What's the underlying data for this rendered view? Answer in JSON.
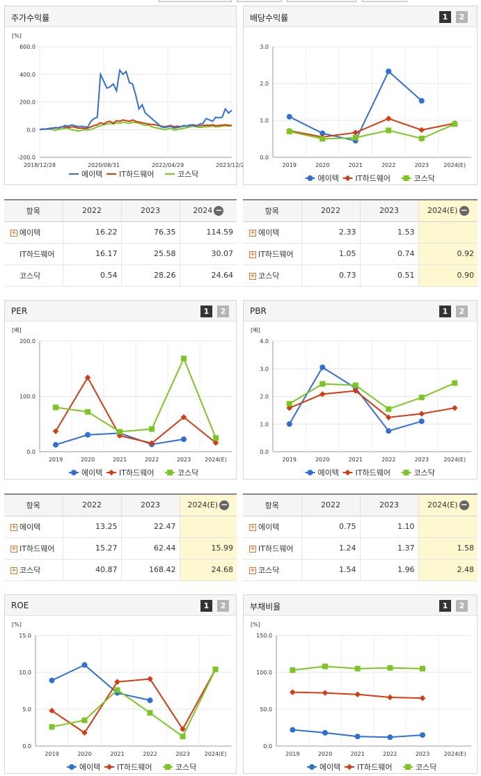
{
  "colors": {
    "s0": "#2f6fd8",
    "s1": "#d63a10",
    "s2": "#7cc623"
  },
  "top_tabs": [
    "",
    "",
    "",
    ""
  ],
  "panels": [
    {
      "title": "주가수익률",
      "tabs": []
    },
    {
      "title": "배당수익률",
      "tabs": [
        "1",
        "2"
      ]
    },
    {
      "title": "PER",
      "tabs": [
        "1",
        "2"
      ]
    },
    {
      "title": "PBR",
      "tabs": [
        "1",
        "2"
      ]
    },
    {
      "title": "ROE",
      "tabs": [
        "1",
        "2"
      ]
    },
    {
      "title": "부채비율",
      "tabs": [
        "1",
        "2"
      ]
    }
  ],
  "chart_data": [
    {
      "type": "line",
      "unit": "[%]",
      "ylim": [
        -200,
        600
      ],
      "yticks": [
        "600.0",
        "400.0",
        "200.0",
        "0.0",
        "-200.0"
      ],
      "xticks": [
        "2018/12/28",
        "2020/08/31",
        "2022/04/29",
        "2023/12/28"
      ],
      "legend": [
        "에이텍",
        "IT하드웨어",
        "코스닥"
      ],
      "x": [
        0,
        1,
        2,
        3,
        4,
        5,
        6,
        7,
        8,
        9,
        10,
        11,
        12,
        13,
        14,
        15,
        16,
        17,
        18,
        19,
        20,
        21,
        22,
        23,
        24,
        25,
        26,
        27,
        28,
        29,
        30,
        31,
        32,
        33,
        34,
        35,
        36,
        37,
        38,
        39,
        40,
        41,
        42,
        43,
        44,
        45,
        46,
        47,
        48,
        49,
        50,
        51,
        52,
        53,
        54,
        55,
        56,
        57,
        58,
        59,
        60
      ],
      "series": [
        {
          "name": "에이텍",
          "values": [
            0,
            5,
            3,
            8,
            12,
            10,
            15,
            20,
            30,
            25,
            35,
            28,
            22,
            25,
            20,
            18,
            60,
            80,
            90,
            400,
            350,
            300,
            310,
            330,
            280,
            430,
            400,
            420,
            340,
            330,
            250,
            150,
            180,
            120,
            100,
            80,
            60,
            40,
            20,
            15,
            20,
            25,
            10,
            15,
            20,
            30,
            25,
            35,
            30,
            25,
            40,
            45,
            80,
            70,
            60,
            90,
            85,
            90,
            150,
            120,
            140
          ]
        },
        {
          "name": "IT하드웨어",
          "values": [
            0,
            3,
            5,
            8,
            10,
            15,
            12,
            20,
            18,
            15,
            20,
            18,
            10,
            12,
            8,
            10,
            20,
            30,
            35,
            50,
            40,
            55,
            60,
            45,
            65,
            60,
            70,
            65,
            60,
            70,
            60,
            55,
            50,
            45,
            40,
            38,
            35,
            30,
            25,
            20,
            25,
            30,
            20,
            25,
            22,
            25,
            28,
            30,
            35,
            30,
            28,
            30,
            32,
            30,
            35,
            28,
            30,
            32,
            35,
            30,
            30
          ]
        },
        {
          "name": "코스닥",
          "values": [
            0,
            2,
            4,
            3,
            0,
            -5,
            2,
            5,
            10,
            8,
            0,
            -5,
            -10,
            -5,
            0,
            -3,
            0,
            10,
            20,
            30,
            35,
            40,
            45,
            40,
            50,
            45,
            55,
            50,
            45,
            55,
            50,
            45,
            40,
            30,
            35,
            20,
            15,
            10,
            5,
            0,
            5,
            10,
            -5,
            0,
            5,
            10,
            15,
            20,
            25,
            20,
            15,
            18,
            20,
            22,
            25,
            20,
            22,
            25,
            28,
            25,
            28
          ]
        }
      ]
    },
    {
      "type": "line",
      "unit": "",
      "ylim": [
        0,
        3
      ],
      "yticks": [
        "3.0",
        "2.0",
        "1.0",
        "0.0"
      ],
      "categories": [
        "2019",
        "2020",
        "2021",
        "2022",
        "2023",
        "2024(E)"
      ],
      "legend": [
        "에이텍",
        "IT하드웨어",
        "코스닥"
      ],
      "series": [
        {
          "name": "에이텍",
          "values": [
            1.1,
            0.65,
            0.45,
            2.33,
            1.53,
            null
          ]
        },
        {
          "name": "IT하드웨어",
          "values": [
            0.72,
            0.55,
            0.67,
            1.05,
            0.74,
            0.92
          ]
        },
        {
          "name": "코스닥",
          "values": [
            0.7,
            0.5,
            0.53,
            0.73,
            0.51,
            0.9
          ]
        }
      ]
    },
    {
      "type": "line",
      "unit": "[배]",
      "ylim": [
        0,
        200
      ],
      "yticks": [
        "200.0",
        "100.0",
        "0.0"
      ],
      "categories": [
        "2019",
        "2020",
        "2021",
        "2022",
        "2023",
        "2024(E)"
      ],
      "legend": [
        "에이텍",
        "IT하드웨어",
        "코스닥"
      ],
      "series": [
        {
          "name": "에이텍",
          "values": [
            12.5,
            30.5,
            33.5,
            13.25,
            22.47,
            null
          ]
        },
        {
          "name": "IT하드웨어",
          "values": [
            37,
            134,
            29,
            15.27,
            62.44,
            15.99
          ]
        },
        {
          "name": "코스닥",
          "values": [
            80,
            72,
            36,
            40.87,
            168.42,
            24.68
          ]
        }
      ]
    },
    {
      "type": "line",
      "unit": "[배]",
      "ylim": [
        0,
        4
      ],
      "yticks": [
        "4.0",
        "3.0",
        "2.0",
        "1.0",
        "0.0"
      ],
      "categories": [
        "2019",
        "2020",
        "2021",
        "2022",
        "2023",
        "2024(E)"
      ],
      "legend": [
        "에이텍",
        "IT하드웨어",
        "코스닥"
      ],
      "series": [
        {
          "name": "에이텍",
          "values": [
            1.0,
            3.05,
            2.3,
            0.75,
            1.1,
            null
          ]
        },
        {
          "name": "IT하드웨어",
          "values": [
            1.58,
            2.08,
            2.2,
            1.24,
            1.37,
            1.58
          ]
        },
        {
          "name": "코스닥",
          "values": [
            1.73,
            2.45,
            2.4,
            1.54,
            1.96,
            2.48
          ]
        }
      ]
    },
    {
      "type": "line",
      "unit": "[%]",
      "ylim": [
        0,
        15
      ],
      "yticks": [
        "15.0",
        "10.0",
        "5.0",
        "0.0"
      ],
      "categories": [
        "2019",
        "2020",
        "2021",
        "2022",
        "2023",
        "2024(E)"
      ],
      "legend": [
        "에이텍",
        "IT하드웨어",
        "코스닥"
      ],
      "series": [
        {
          "name": "에이텍",
          "values": [
            8.9,
            11.0,
            7.2,
            6.2,
            null,
            null
          ]
        },
        {
          "name": "IT하드웨어",
          "values": [
            4.8,
            1.8,
            8.7,
            9.1,
            2.3,
            10.4
          ]
        },
        {
          "name": "코스닥",
          "values": [
            2.6,
            3.5,
            7.6,
            4.5,
            1.3,
            10.4
          ]
        }
      ]
    },
    {
      "type": "line",
      "unit": "[%]",
      "ylim": [
        0,
        150
      ],
      "yticks": [
        "150.0",
        "100.0",
        "50.0",
        "0.0"
      ],
      "categories": [
        "2019",
        "2020",
        "2021",
        "2022",
        "2023",
        "2024(E)"
      ],
      "legend": [
        "에이텍",
        "IT하드웨어",
        "코스닥"
      ],
      "series": [
        {
          "name": "에이텍",
          "values": [
            22,
            18,
            13,
            12,
            15,
            null
          ]
        },
        {
          "name": "IT하드웨어",
          "values": [
            73,
            72,
            70,
            66,
            65,
            null
          ]
        },
        {
          "name": "코스닥",
          "values": [
            103,
            108,
            105,
            106,
            105,
            null
          ]
        }
      ]
    }
  ],
  "tables": [
    {
      "headers": [
        "항목",
        "2022",
        "2023",
        "2024"
      ],
      "est_col": false,
      "rows": [
        {
          "name": "에이텍",
          "plus": true,
          "values": [
            "16.22",
            "76.35",
            "114.59"
          ]
        },
        {
          "name": "IT하드웨어",
          "plus": false,
          "values": [
            "16.17",
            "25.58",
            "30.07"
          ]
        },
        {
          "name": "코스닥",
          "plus": false,
          "values": [
            "0.54",
            "28.26",
            "24.64"
          ]
        }
      ]
    },
    {
      "headers": [
        "항목",
        "2022",
        "2023",
        "2024(E)"
      ],
      "est_col": true,
      "rows": [
        {
          "name": "에이텍",
          "plus": true,
          "values": [
            "2.33",
            "1.53",
            ""
          ]
        },
        {
          "name": "IT하드웨어",
          "plus": true,
          "values": [
            "1.05",
            "0.74",
            "0.92"
          ]
        },
        {
          "name": "코스닥",
          "plus": true,
          "values": [
            "0.73",
            "0.51",
            "0.90"
          ]
        }
      ]
    },
    {
      "headers": [
        "항목",
        "2022",
        "2023",
        "2024(E)"
      ],
      "est_col": true,
      "rows": [
        {
          "name": "에이텍",
          "plus": true,
          "values": [
            "13.25",
            "22.47",
            ""
          ]
        },
        {
          "name": "IT하드웨어",
          "plus": true,
          "values": [
            "15.27",
            "62.44",
            "15.99"
          ]
        },
        {
          "name": "코스닥",
          "plus": true,
          "values": [
            "40.87",
            "168.42",
            "24.68"
          ]
        }
      ]
    },
    {
      "headers": [
        "항목",
        "2022",
        "2023",
        "2024(E)"
      ],
      "est_col": true,
      "rows": [
        {
          "name": "에이텍",
          "plus": true,
          "values": [
            "0.75",
            "1.10",
            ""
          ]
        },
        {
          "name": "IT하드웨어",
          "plus": true,
          "values": [
            "1.24",
            "1.37",
            "1.58"
          ]
        },
        {
          "name": "코스닥",
          "plus": true,
          "values": [
            "1.54",
            "1.96",
            "2.48"
          ]
        }
      ]
    }
  ]
}
